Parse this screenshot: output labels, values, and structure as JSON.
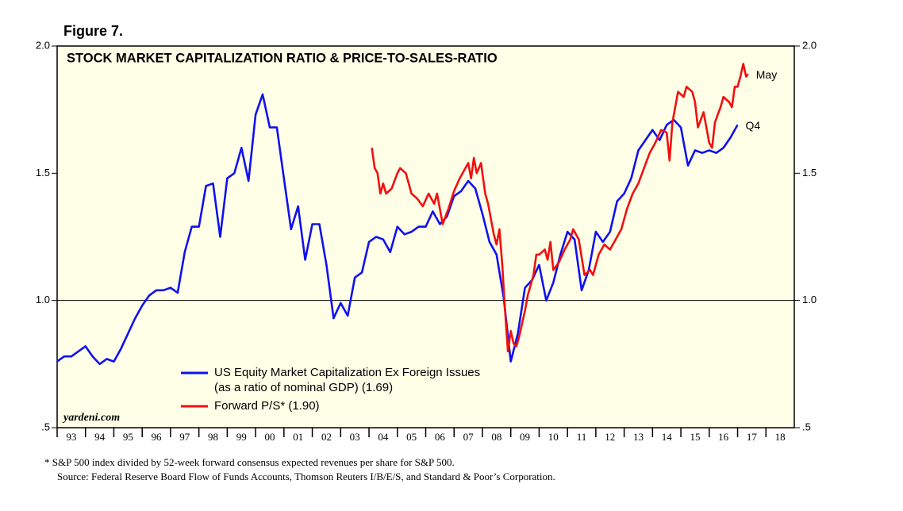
{
  "chart_data": {
    "type": "line",
    "figure_label": "Figure 7.",
    "title": "STOCK MARKET CAPITALIZATION RATIO & PRICE-TO-SALES-RATIO",
    "watermark": "yardeni.com",
    "xlim": [
      1993,
      2019
    ],
    "xticks": [
      {
        "value": 1993,
        "label": "93"
      },
      {
        "value": 1994,
        "label": "94"
      },
      {
        "value": 1995,
        "label": "95"
      },
      {
        "value": 1996,
        "label": "96"
      },
      {
        "value": 1997,
        "label": "97"
      },
      {
        "value": 1998,
        "label": "98"
      },
      {
        "value": 1999,
        "label": "99"
      },
      {
        "value": 2000,
        "label": "00"
      },
      {
        "value": 2001,
        "label": "01"
      },
      {
        "value": 2002,
        "label": "02"
      },
      {
        "value": 2003,
        "label": "03"
      },
      {
        "value": 2004,
        "label": "04"
      },
      {
        "value": 2005,
        "label": "05"
      },
      {
        "value": 2006,
        "label": "06"
      },
      {
        "value": 2007,
        "label": "07"
      },
      {
        "value": 2008,
        "label": "08"
      },
      {
        "value": 2009,
        "label": "09"
      },
      {
        "value": 2010,
        "label": "10"
      },
      {
        "value": 2011,
        "label": "11"
      },
      {
        "value": 2012,
        "label": "12"
      },
      {
        "value": 2013,
        "label": "13"
      },
      {
        "value": 2014,
        "label": "14"
      },
      {
        "value": 2015,
        "label": "15"
      },
      {
        "value": 2016,
        "label": "16"
      },
      {
        "value": 2017,
        "label": "17"
      },
      {
        "value": 2018,
        "label": "18"
      }
    ],
    "ylim": [
      0.5,
      2.0
    ],
    "yticks": [
      {
        "value": 0.5,
        "label": ".5"
      },
      {
        "value": 1.0,
        "label": "1.0"
      },
      {
        "value": 1.5,
        "label": "1.5"
      },
      {
        "value": 2.0,
        "label": "2.0"
      }
    ],
    "reference_line": 1.0,
    "series": [
      {
        "name": "US Equity Market Capitalization Ex Foreign Issues",
        "name_note": "(as a ratio of nominal GDP) (1.69)",
        "end_label": "Q4",
        "color": "#1010f0",
        "x": [
          1993.0,
          1993.25,
          1993.5,
          1994.0,
          1994.25,
          1994.5,
          1994.75,
          1995.0,
          1995.25,
          1995.5,
          1995.75,
          1996.0,
          1996.25,
          1996.5,
          1996.75,
          1997.0,
          1997.25,
          1997.5,
          1997.75,
          1998.0,
          1998.25,
          1998.5,
          1998.75,
          1999.0,
          1999.25,
          1999.5,
          1999.75,
          2000.0,
          2000.25,
          2000.5,
          2000.75,
          2001.0,
          2001.25,
          2001.5,
          2001.75,
          2002.0,
          2002.25,
          2002.5,
          2002.75,
          2003.0,
          2003.25,
          2003.5,
          2003.75,
          2004.0,
          2004.25,
          2004.5,
          2004.75,
          2005.0,
          2005.25,
          2005.5,
          2005.75,
          2006.0,
          2006.25,
          2006.5,
          2006.75,
          2007.0,
          2007.25,
          2007.5,
          2007.75,
          2008.0,
          2008.25,
          2008.5,
          2008.75,
          2009.0,
          2009.25,
          2009.5,
          2009.75,
          2010.0,
          2010.25,
          2010.5,
          2010.75,
          2011.0,
          2011.25,
          2011.5,
          2011.75,
          2012.0,
          2012.25,
          2012.5,
          2012.75,
          2013.0,
          2013.25,
          2013.5,
          2013.75,
          2014.0,
          2014.25,
          2014.5,
          2014.75,
          2015.0,
          2015.25,
          2015.5,
          2015.75,
          2016.0,
          2016.25,
          2016.5,
          2016.75,
          2017.0
        ],
        "values": [
          0.76,
          0.78,
          0.78,
          0.82,
          0.78,
          0.75,
          0.77,
          0.76,
          0.81,
          0.87,
          0.93,
          0.98,
          1.02,
          1.04,
          1.04,
          1.05,
          1.03,
          1.19,
          1.29,
          1.29,
          1.45,
          1.46,
          1.25,
          1.48,
          1.5,
          1.6,
          1.47,
          1.73,
          1.81,
          1.68,
          1.68,
          1.48,
          1.28,
          1.37,
          1.16,
          1.3,
          1.3,
          1.14,
          0.93,
          0.99,
          0.94,
          1.09,
          1.11,
          1.23,
          1.25,
          1.24,
          1.19,
          1.29,
          1.26,
          1.27,
          1.29,
          1.29,
          1.35,
          1.3,
          1.33,
          1.41,
          1.43,
          1.47,
          1.44,
          1.34,
          1.23,
          1.18,
          1.01,
          0.76,
          0.87,
          1.05,
          1.08,
          1.14,
          1.0,
          1.07,
          1.18,
          1.27,
          1.24,
          1.04,
          1.12,
          1.27,
          1.23,
          1.27,
          1.39,
          1.42,
          1.48,
          1.59,
          1.63,
          1.67,
          1.63,
          1.69,
          1.71,
          1.68,
          1.53,
          1.59,
          1.58,
          1.59,
          1.58,
          1.6,
          1.64,
          1.69
        ]
      },
      {
        "name": "Forward P/S* (1.90)",
        "end_label": "May",
        "color": "#f01010",
        "x": [
          2004.1,
          2004.2,
          2004.3,
          2004.4,
          2004.5,
          2004.6,
          2004.8,
          2005.0,
          2005.1,
          2005.3,
          2005.5,
          2005.7,
          2005.9,
          2006.1,
          2006.3,
          2006.4,
          2006.5,
          2006.6,
          2006.8,
          2007.0,
          2007.2,
          2007.4,
          2007.5,
          2007.6,
          2007.7,
          2007.8,
          2007.95,
          2008.1,
          2008.2,
          2008.4,
          2008.5,
          2008.6,
          2008.7,
          2008.8,
          2008.9,
          2009.0,
          2009.1,
          2009.2,
          2009.3,
          2009.5,
          2009.6,
          2009.8,
          2009.9,
          2010.0,
          2010.2,
          2010.3,
          2010.4,
          2010.5,
          2010.7,
          2010.9,
          2011.1,
          2011.2,
          2011.4,
          2011.6,
          2011.8,
          2011.9,
          2012.1,
          2012.3,
          2012.5,
          2012.7,
          2012.9,
          2013.1,
          2013.3,
          2013.5,
          2013.7,
          2013.9,
          2014.1,
          2014.3,
          2014.5,
          2014.6,
          2014.7,
          2014.9,
          2015.1,
          2015.2,
          2015.4,
          2015.5,
          2015.6,
          2015.8,
          2016.0,
          2016.1,
          2016.2,
          2016.4,
          2016.5,
          2016.7,
          2016.8,
          2016.9,
          2017.0,
          2017.1,
          2017.2,
          2017.3,
          2017.37
        ],
        "values": [
          1.6,
          1.52,
          1.5,
          1.42,
          1.46,
          1.42,
          1.44,
          1.5,
          1.52,
          1.5,
          1.42,
          1.4,
          1.37,
          1.42,
          1.38,
          1.42,
          1.36,
          1.3,
          1.36,
          1.43,
          1.48,
          1.52,
          1.54,
          1.48,
          1.56,
          1.5,
          1.54,
          1.42,
          1.38,
          1.26,
          1.22,
          1.28,
          1.14,
          0.96,
          0.8,
          0.88,
          0.83,
          0.82,
          0.86,
          0.96,
          1.02,
          1.1,
          1.18,
          1.18,
          1.2,
          1.16,
          1.23,
          1.12,
          1.15,
          1.2,
          1.24,
          1.28,
          1.24,
          1.1,
          1.12,
          1.1,
          1.18,
          1.22,
          1.2,
          1.24,
          1.28,
          1.36,
          1.42,
          1.46,
          1.52,
          1.58,
          1.62,
          1.67,
          1.66,
          1.55,
          1.7,
          1.82,
          1.8,
          1.84,
          1.82,
          1.78,
          1.68,
          1.74,
          1.62,
          1.6,
          1.7,
          1.76,
          1.8,
          1.78,
          1.76,
          1.84,
          1.84,
          1.88,
          1.93,
          1.88,
          1.89
        ]
      }
    ],
    "footnotes": [
      "*  S&P 500 index divided by 52-week forward consensus expected revenues per share for S&P 500.",
      "Source: Federal Reserve Board Flow of Funds Accounts, Thomson Reuters I/B/E/S, and Standard & Poor’s Corporation."
    ]
  }
}
